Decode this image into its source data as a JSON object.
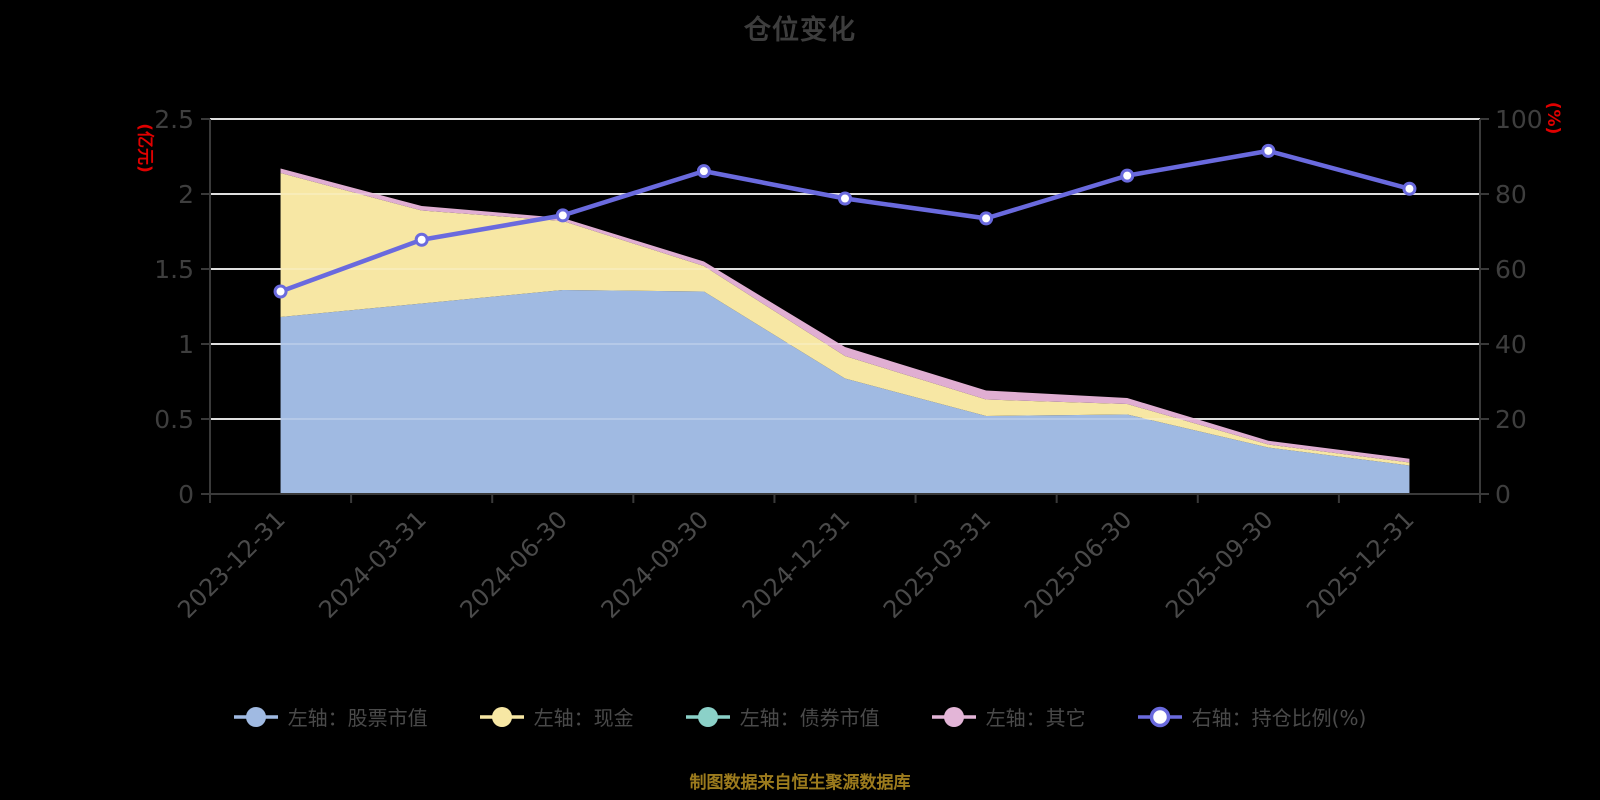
{
  "title": "仓位变化",
  "caption": "制图数据来自恒生聚源数据库",
  "axes": {
    "left_unit": "(亿元)",
    "right_unit": "(%)",
    "left_ticks": [
      "0",
      "0.5",
      "1",
      "1.5",
      "2",
      "2.5"
    ],
    "right_ticks": [
      "0",
      "20",
      "40",
      "60",
      "80",
      "100"
    ]
  },
  "legend": [
    {
      "key": "stock",
      "label": "左轴：股票市值",
      "color": "#a0bae2",
      "hollow": false
    },
    {
      "key": "cash",
      "label": "左轴：现金",
      "color": "#f7e7a4",
      "hollow": false
    },
    {
      "key": "bond",
      "label": "左轴：债券市值",
      "color": "#8bd1c8",
      "hollow": false
    },
    {
      "key": "other",
      "label": "左轴：其它",
      "color": "#e3b5d7",
      "hollow": false
    },
    {
      "key": "ratio",
      "label": "右轴：持仓比例(%)",
      "color": "#6a6ade",
      "hollow": true
    }
  ],
  "chart_data": {
    "type": "area+line",
    "title": "仓位变化",
    "categories": [
      "2023-12-31",
      "2024-03-31",
      "2024-06-30",
      "2024-09-30",
      "2024-12-31",
      "2025-03-31",
      "2025-06-30",
      "2025-09-30",
      "2025-12-31"
    ],
    "left_ylim": [
      0,
      2.5
    ],
    "right_ylim": [
      0,
      100
    ],
    "left_axis_unit": "亿元",
    "right_axis_unit": "%",
    "grid": true,
    "legend_position": "bottom",
    "series": [
      {
        "key": "stock",
        "name": "左轴：股票市值",
        "type": "area",
        "stack": true,
        "axis": "left",
        "color": "#a0bae2",
        "values": [
          1.18,
          1.27,
          1.36,
          1.35,
          0.77,
          0.52,
          0.53,
          0.31,
          0.19
        ]
      },
      {
        "key": "cash",
        "name": "左轴：现金",
        "type": "area",
        "stack": true,
        "axis": "left",
        "color": "#f7e7a4",
        "values": [
          0.96,
          0.62,
          0.46,
          0.17,
          0.15,
          0.11,
          0.07,
          0.02,
          0.02
        ]
      },
      {
        "key": "bond",
        "name": "左轴：债券市值",
        "type": "area",
        "stack": true,
        "axis": "left",
        "color": "#8bd1c8",
        "values": [
          0,
          0,
          0,
          0,
          0,
          0,
          0,
          0,
          0
        ]
      },
      {
        "key": "other",
        "name": "左轴：其它",
        "type": "area",
        "stack": true,
        "axis": "left",
        "color": "#e0aed2",
        "values": [
          0.03,
          0.03,
          0.02,
          0.03,
          0.06,
          0.06,
          0.04,
          0.025,
          0.025
        ]
      },
      {
        "key": "ratio",
        "name": "右轴：持仓比例(%)",
        "type": "line",
        "axis": "right",
        "color": "#6a6ade",
        "values": [
          54.0,
          67.8,
          74.3,
          86.1,
          78.8,
          73.5,
          84.9,
          91.5,
          81.4
        ]
      }
    ]
  }
}
